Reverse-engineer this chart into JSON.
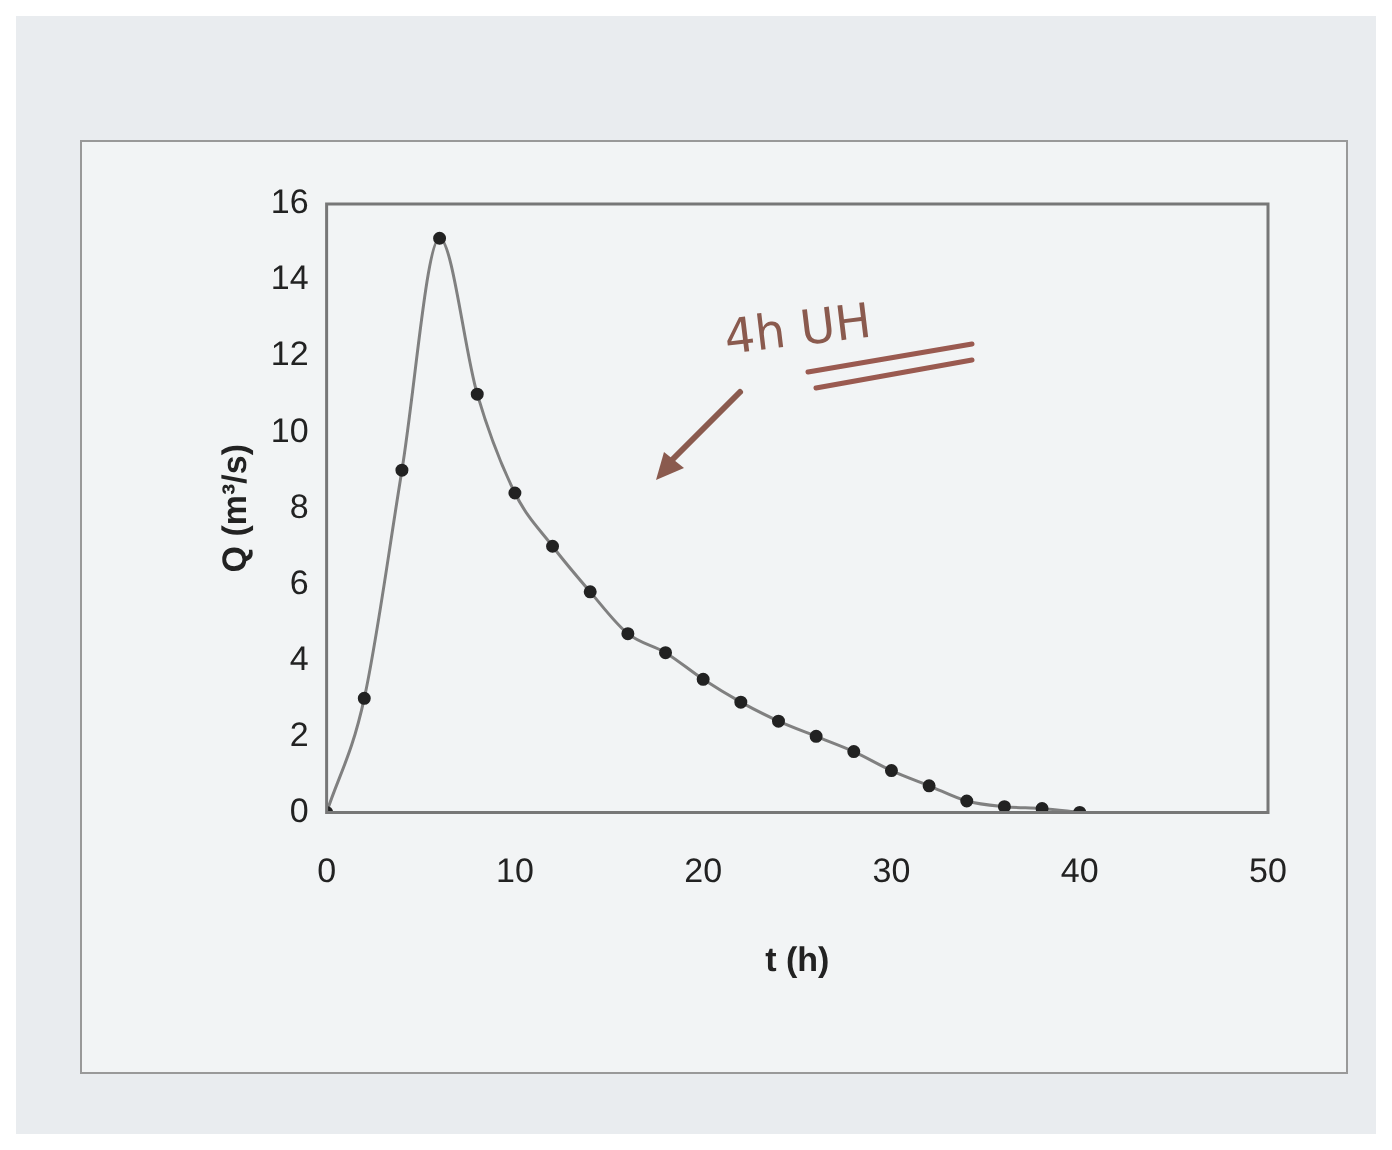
{
  "chart_data": {
    "type": "line",
    "xlabel": "t (h)",
    "ylabel": "Q (m³/s)",
    "x": [
      0,
      2,
      4,
      6,
      8,
      10,
      12,
      14,
      16,
      18,
      20,
      22,
      24,
      26,
      28,
      30,
      32,
      34,
      36,
      38,
      40
    ],
    "series": [
      {
        "color": "#808080",
        "values": [
          0,
          3,
          9,
          15.1,
          11,
          8.4,
          7,
          5.8,
          4.7,
          4.2,
          3.5,
          2.9,
          2.4,
          2,
          1.6,
          1.1,
          0.7,
          0.3,
          0.15,
          0.1,
          0
        ]
      }
    ],
    "xlim": [
      0,
      50
    ],
    "xticks": [
      0,
      10,
      20,
      30,
      40,
      50
    ],
    "ylim": [
      0,
      16
    ],
    "yticks": [
      0,
      2,
      4,
      6,
      8,
      10,
      12,
      14,
      16
    ],
    "marker": "circle",
    "grid": false,
    "legend": false,
    "annotations": [
      "4h UH"
    ]
  }
}
